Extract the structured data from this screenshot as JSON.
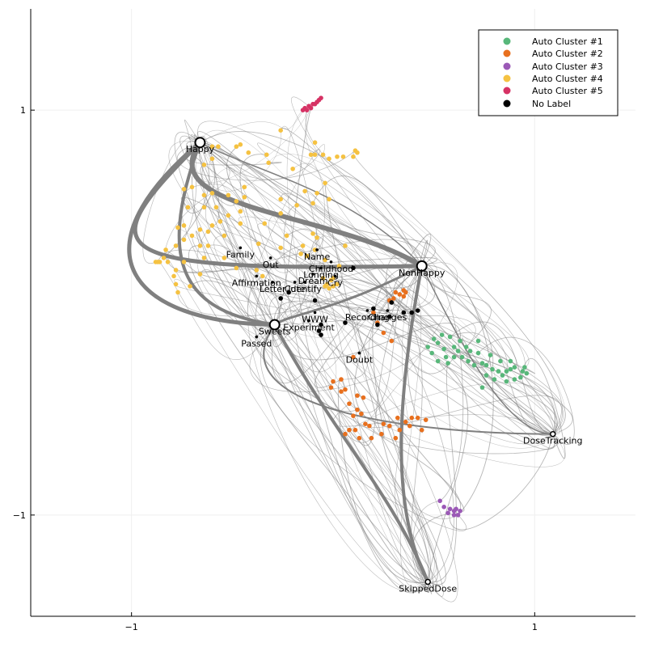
{
  "chart_data": {
    "type": "scatter",
    "title": "",
    "xlabel": "",
    "ylabel": "",
    "xlim": [
      -1.5,
      1.5
    ],
    "ylim": [
      -1.5,
      1.5
    ],
    "xticks": [
      {
        "value": -1,
        "label": "−1"
      },
      {
        "value": 1,
        "label": "1"
      }
    ],
    "yticks": [
      {
        "value": -1,
        "label": "−1"
      },
      {
        "value": 1,
        "label": "1"
      }
    ],
    "grid": true,
    "legend_position": "top-right",
    "colors": {
      "edge": "#808080",
      "axis": "#000000",
      "grid": "#efefef"
    },
    "series": [
      {
        "name": "Auto Cluster #1",
        "color": "#58b77a",
        "points": [
          [
            0.54,
            -0.11
          ],
          [
            0.58,
            -0.12
          ],
          [
            0.52,
            -0.15
          ],
          [
            0.55,
            -0.18
          ],
          [
            0.6,
            -0.17
          ],
          [
            0.63,
            -0.14
          ],
          [
            0.66,
            -0.17
          ],
          [
            0.68,
            -0.19
          ],
          [
            0.72,
            -0.14
          ],
          [
            0.72,
            -0.2
          ],
          [
            0.74,
            -0.25
          ],
          [
            0.7,
            -0.26
          ],
          [
            0.67,
            -0.24
          ],
          [
            0.64,
            -0.22
          ],
          [
            0.6,
            -0.22
          ],
          [
            0.57,
            -0.25
          ],
          [
            0.52,
            -0.24
          ],
          [
            0.49,
            -0.2
          ],
          [
            0.47,
            -0.17
          ],
          [
            0.5,
            -0.13
          ],
          [
            0.76,
            -0.26
          ],
          [
            0.79,
            -0.28
          ],
          [
            0.82,
            -0.29
          ],
          [
            0.86,
            -0.29
          ],
          [
            0.88,
            -0.28
          ],
          [
            0.9,
            -0.27
          ],
          [
            0.94,
            -0.29
          ],
          [
            0.96,
            -0.3
          ],
          [
            0.95,
            -0.27
          ],
          [
            0.93,
            -0.32
          ],
          [
            0.86,
            -0.34
          ],
          [
            0.8,
            -0.33
          ],
          [
            0.78,
            -0.21
          ],
          [
            0.83,
            -0.24
          ],
          [
            0.88,
            -0.24
          ],
          [
            0.76,
            -0.31
          ],
          [
            0.74,
            -0.37
          ],
          [
            0.84,
            -0.31
          ],
          [
            0.9,
            -0.33
          ],
          [
            0.56,
            -0.22
          ],
          [
            0.62,
            -0.19
          ]
        ]
      },
      {
        "name": "Auto Cluster #2",
        "color": "#e8701e",
        "points": [
          [
            0.31,
            0.1
          ],
          [
            0.33,
            0.09
          ],
          [
            0.35,
            0.11
          ],
          [
            0.35,
            0.08
          ],
          [
            0.36,
            0.1
          ],
          [
            0.3,
            0.07
          ],
          [
            0.28,
            0.06
          ],
          [
            0.2,
            0.0
          ],
          [
            0.22,
            -0.05
          ],
          [
            0.25,
            -0.1
          ],
          [
            0.29,
            -0.14
          ],
          [
            0.1,
            -0.22
          ],
          [
            0.0,
            -0.34
          ],
          [
            -0.01,
            -0.37
          ],
          [
            0.04,
            -0.33
          ],
          [
            0.06,
            -0.38
          ],
          [
            0.08,
            -0.45
          ],
          [
            0.12,
            -0.48
          ],
          [
            0.1,
            -0.51
          ],
          [
            0.14,
            -0.5
          ],
          [
            0.16,
            -0.55
          ],
          [
            0.18,
            -0.56
          ],
          [
            0.08,
            -0.58
          ],
          [
            0.06,
            -0.6
          ],
          [
            0.11,
            -0.58
          ],
          [
            0.13,
            -0.62
          ],
          [
            0.19,
            -0.62
          ],
          [
            0.24,
            -0.6
          ],
          [
            0.28,
            -0.56
          ],
          [
            0.33,
            -0.58
          ],
          [
            0.36,
            -0.54
          ],
          [
            0.38,
            -0.56
          ],
          [
            0.32,
            -0.52
          ],
          [
            0.39,
            -0.52
          ],
          [
            0.42,
            -0.52
          ],
          [
            0.46,
            -0.53
          ],
          [
            0.44,
            -0.58
          ],
          [
            0.31,
            -0.62
          ],
          [
            0.25,
            -0.55
          ],
          [
            0.12,
            -0.41
          ],
          [
            0.15,
            -0.42
          ],
          [
            0.04,
            -0.39
          ]
        ]
      },
      {
        "name": "Auto Cluster #3",
        "color": "#9b59b6",
        "points": [
          [
            0.53,
            -0.93
          ],
          [
            0.55,
            -0.96
          ],
          [
            0.58,
            -0.97
          ],
          [
            0.6,
            -0.98
          ],
          [
            0.61,
            -0.97
          ],
          [
            0.63,
            -0.98
          ],
          [
            0.57,
            -0.99
          ],
          [
            0.62,
            -1.0
          ],
          [
            0.6,
            -1.0
          ]
        ]
      },
      {
        "name": "Auto Cluster #4",
        "color": "#f5c242",
        "points": [
          [
            -0.64,
            0.73
          ],
          [
            -0.6,
            0.76
          ],
          [
            -0.6,
            0.82
          ],
          [
            -0.57,
            0.82
          ],
          [
            -0.48,
            0.82
          ],
          [
            -0.46,
            0.83
          ],
          [
            -0.42,
            0.79
          ],
          [
            -0.33,
            0.78
          ],
          [
            -0.26,
            0.9
          ],
          [
            -0.09,
            0.84
          ],
          [
            -0.11,
            0.78
          ],
          [
            -0.09,
            0.78
          ],
          [
            -0.05,
            0.78
          ],
          [
            -0.02,
            0.76
          ],
          [
            0.02,
            0.77
          ],
          [
            0.05,
            0.77
          ],
          [
            0.1,
            0.77
          ],
          [
            0.11,
            0.8
          ],
          [
            0.12,
            0.79
          ],
          [
            -0.32,
            0.74
          ],
          [
            -0.2,
            0.71
          ],
          [
            -0.04,
            0.64
          ],
          [
            -0.14,
            0.6
          ],
          [
            -0.08,
            0.59
          ],
          [
            -0.18,
            0.53
          ],
          [
            -0.26,
            0.56
          ],
          [
            -0.44,
            0.62
          ],
          [
            -0.44,
            0.57
          ],
          [
            -0.48,
            0.55
          ],
          [
            -0.52,
            0.58
          ],
          [
            -0.6,
            0.59
          ],
          [
            -0.64,
            0.58
          ],
          [
            -0.7,
            0.62
          ],
          [
            -0.74,
            0.61
          ],
          [
            -0.72,
            0.52
          ],
          [
            -0.64,
            0.52
          ],
          [
            -0.58,
            0.52
          ],
          [
            -0.52,
            0.48
          ],
          [
            -0.46,
            0.5
          ],
          [
            -0.56,
            0.45
          ],
          [
            -0.6,
            0.43
          ],
          [
            -0.62,
            0.4
          ],
          [
            -0.66,
            0.41
          ],
          [
            -0.74,
            0.43
          ],
          [
            -0.77,
            0.42
          ],
          [
            -0.7,
            0.38
          ],
          [
            -0.74,
            0.36
          ],
          [
            -0.78,
            0.33
          ],
          [
            -0.83,
            0.31
          ],
          [
            -0.84,
            0.27
          ],
          [
            -0.82,
            0.25
          ],
          [
            -0.86,
            0.25
          ],
          [
            -0.87,
            0.25
          ],
          [
            -0.88,
            0.25
          ],
          [
            -0.74,
            0.25
          ],
          [
            -0.78,
            0.21
          ],
          [
            -0.79,
            0.18
          ],
          [
            -0.78,
            0.14
          ],
          [
            -0.77,
            0.1
          ],
          [
            -0.71,
            0.13
          ],
          [
            -0.66,
            0.19
          ],
          [
            -0.64,
            0.27
          ],
          [
            -0.66,
            0.33
          ],
          [
            -0.62,
            0.33
          ],
          [
            -0.54,
            0.38
          ],
          [
            -0.46,
            0.44
          ],
          [
            -0.54,
            0.27
          ],
          [
            -0.48,
            0.22
          ],
          [
            -0.38,
            0.21
          ],
          [
            -0.35,
            0.18
          ],
          [
            -0.26,
            0.32
          ],
          [
            -0.23,
            0.38
          ],
          [
            -0.16,
            0.29
          ],
          [
            -0.15,
            0.33
          ],
          [
            -0.08,
            0.37
          ],
          [
            -0.1,
            0.39
          ],
          [
            -0.09,
            0.31
          ],
          [
            -0.13,
            0.28
          ],
          [
            -0.04,
            0.26
          ],
          [
            0.03,
            0.23
          ],
          [
            0.0,
            0.17
          ],
          [
            -0.05,
            0.17
          ],
          [
            0.02,
            0.14
          ],
          [
            -0.01,
            0.16
          ],
          [
            -0.02,
            0.12
          ],
          [
            0.0,
            0.13
          ],
          [
            -0.03,
            0.14
          ],
          [
            -0.04,
            0.13
          ],
          [
            -0.26,
            0.49
          ],
          [
            -0.1,
            0.54
          ],
          [
            -0.02,
            0.56
          ],
          [
            -0.34,
            0.44
          ],
          [
            -0.37,
            0.34
          ],
          [
            0.06,
            0.33
          ]
        ]
      },
      {
        "name": "Auto Cluster #5",
        "color": "#d63264",
        "points": [
          [
            -0.15,
            1.0
          ],
          [
            -0.14,
            1.01
          ],
          [
            -0.13,
            1.0
          ],
          [
            -0.12,
            1.02
          ],
          [
            -0.11,
            1.01
          ],
          [
            -0.1,
            1.03
          ],
          [
            -0.09,
            1.03
          ],
          [
            -0.08,
            1.04
          ],
          [
            -0.07,
            1.05
          ],
          [
            -0.06,
            1.06
          ]
        ]
      },
      {
        "name": "No Label",
        "color": "#000000",
        "points": [
          [
            -0.06,
            -0.11
          ],
          [
            -0.07,
            -0.09
          ],
          [
            -0.06,
            -0.06
          ],
          [
            0.06,
            -0.05
          ],
          [
            0.2,
            0.02
          ],
          [
            0.22,
            -0.06
          ],
          [
            0.28,
            -0.02
          ],
          [
            0.29,
            0.05
          ],
          [
            0.35,
            0.0
          ],
          [
            0.39,
            -0.0
          ],
          [
            0.42,
            0.01
          ],
          [
            -0.09,
            0.06
          ],
          [
            -0.22,
            0.1
          ],
          [
            -0.26,
            0.07
          ],
          [
            0.1,
            0.22
          ]
        ]
      }
    ],
    "labeled_nodes": [
      {
        "label": "Happy",
        "x": -0.66,
        "y": 0.84,
        "size": "large"
      },
      {
        "label": "NonHappy",
        "x": 0.44,
        "y": 0.23,
        "size": "large"
      },
      {
        "label": "Sweets",
        "x": -0.29,
        "y": -0.06,
        "size": "large"
      },
      {
        "label": "DoseTracking",
        "x": 1.09,
        "y": -0.6,
        "size": "small"
      },
      {
        "label": "SkippedDose",
        "x": 0.47,
        "y": -1.33,
        "size": "small"
      },
      {
        "label": "Family",
        "x": -0.46,
        "y": 0.32,
        "size": "none"
      },
      {
        "label": "Name",
        "x": -0.08,
        "y": 0.31,
        "size": "none"
      },
      {
        "label": "Childhood",
        "x": -0.01,
        "y": 0.25,
        "size": "none"
      },
      {
        "label": "Out",
        "x": -0.31,
        "y": 0.27,
        "size": "none"
      },
      {
        "label": "Longing",
        "x": -0.06,
        "y": 0.22,
        "size": "none"
      },
      {
        "label": "Dream",
        "x": -0.1,
        "y": 0.19,
        "size": "none"
      },
      {
        "label": "Cry",
        "x": 0.01,
        "y": 0.18,
        "size": "none"
      },
      {
        "label": "Affirmation",
        "x": -0.38,
        "y": 0.18,
        "size": "none"
      },
      {
        "label": "Letter",
        "x": -0.3,
        "y": 0.15,
        "size": "none"
      },
      {
        "label": "Cute",
        "x": -0.19,
        "y": 0.15,
        "size": "none"
      },
      {
        "label": "Identify",
        "x": -0.14,
        "y": 0.15,
        "size": "none"
      },
      {
        "label": "Recording",
        "x": 0.17,
        "y": 0.01,
        "size": "none"
      },
      {
        "label": "Changes",
        "x": 0.27,
        "y": 0.01,
        "size": "none"
      },
      {
        "label": "WWW",
        "x": -0.09,
        "y": 0.0,
        "size": "none"
      },
      {
        "label": "Experiment",
        "x": -0.12,
        "y": -0.04,
        "size": "none"
      },
      {
        "label": "Passed",
        "x": -0.38,
        "y": -0.12,
        "size": "none"
      },
      {
        "label": "Doubt",
        "x": 0.13,
        "y": -0.2,
        "size": "none"
      }
    ],
    "thick_edges": [
      {
        "from": "Happy",
        "to": "NonHappy",
        "ctrl": [
          [
            -0.9,
            0.5
          ],
          [
            0.0,
            0.5
          ]
        ],
        "weight": 6
      },
      {
        "from": "NonHappy",
        "to": "Happy",
        "ctrl": [
          [
            -1.2,
            0.2
          ],
          [
            -1.2,
            0.3
          ]
        ],
        "weight": 5
      },
      {
        "from": "Happy",
        "to": "Sweets",
        "ctrl": [
          [
            -1.3,
            0.3
          ],
          [
            -1.0,
            -0.05
          ]
        ],
        "weight": 5
      },
      {
        "from": "Happy",
        "to": "Sweets",
        "ctrl": [
          [
            -0.9,
            0.2
          ],
          [
            -0.7,
            0.0
          ]
        ],
        "weight": 4
      },
      {
        "from": "Sweets",
        "to": "SkippedDose",
        "ctrl": [
          [
            0.0,
            -0.6
          ],
          [
            0.3,
            -0.9
          ]
        ],
        "weight": 4
      },
      {
        "from": "NonHappy",
        "to": "SkippedDose",
        "ctrl": [
          [
            0.3,
            -0.5
          ],
          [
            0.3,
            -1.0
          ]
        ],
        "weight": 4
      },
      {
        "from": "NonHappy",
        "to": "Sweets",
        "ctrl": [
          [
            0.0,
            0.0
          ],
          [
            -0.2,
            0.0
          ]
        ],
        "weight": 3
      },
      {
        "from": "Sweets",
        "to": "DoseTracking",
        "ctrl": [
          [
            -0.6,
            -0.5
          ],
          [
            0.5,
            -0.6
          ]
        ],
        "weight": 2
      },
      {
        "from": "NonHappy",
        "to": "DoseTracking",
        "ctrl": [
          [
            0.7,
            -0.3
          ],
          [
            0.9,
            -0.6
          ]
        ],
        "weight": 1.5
      },
      {
        "from": "Happy",
        "to": "NonHappy",
        "ctrl": [
          [
            -0.4,
            0.7
          ],
          [
            0.1,
            0.6
          ]
        ],
        "weight": 1.5
      }
    ]
  },
  "legend": {
    "entries": [
      {
        "label": "Auto Cluster #1",
        "color": "#58b77a"
      },
      {
        "label": "Auto Cluster #2",
        "color": "#e8701e"
      },
      {
        "label": "Auto Cluster #3",
        "color": "#9b59b6"
      },
      {
        "label": "Auto Cluster #4",
        "color": "#f5c242"
      },
      {
        "label": "Auto Cluster #5",
        "color": "#d63264"
      },
      {
        "label": "No Label",
        "color": "#000000"
      }
    ]
  }
}
